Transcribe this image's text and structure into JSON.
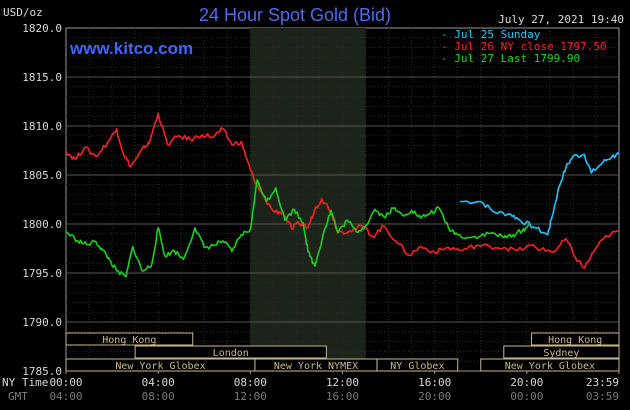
{
  "chart_data": {
    "type": "line",
    "title": "24 Hour Spot Gold (Bid)",
    "brand": "www.kitco.com",
    "timestamp": "July 27, 2021 19:40",
    "ylabel": "USD/oz",
    "ylim": [
      1785,
      1820
    ],
    "y_ticks": [
      "1820.0",
      "1815.0",
      "1810.0",
      "1805.0",
      "1800.0",
      "1795.0",
      "1790.0",
      "1785.0"
    ],
    "x_range_hours": [
      0,
      24
    ],
    "grid": true,
    "legend_position": "top-right",
    "x_axis_label_ny": "NY Time",
    "x_axis_label_gmt": "GMT",
    "x_ticks_ny": [
      "00:00",
      "04:00",
      "08:00",
      "12:00",
      "16:00",
      "20:00",
      "23:59"
    ],
    "x_ticks_gmt": [
      "04:00",
      "08:00",
      "12:00",
      "16:00",
      "20:00",
      "00:00",
      "03:59"
    ],
    "shaded_period_hours": [
      8,
      13
    ],
    "series": [
      {
        "name": "Jul 25 Sunday",
        "color": "#19c8ff",
        "x": [
          17.1,
          18.0,
          18.6,
          19.3,
          19.7,
          20.3,
          20.9,
          21.1,
          21.4,
          21.7,
          22.0,
          22.5,
          22.8,
          23.3,
          23.7,
          23.99
        ],
        "y": [
          1802.3,
          1802.3,
          1801.2,
          1801.0,
          1800.4,
          1799.7,
          1798.9,
          1800.8,
          1803.8,
          1805.8,
          1806.9,
          1807.1,
          1805.2,
          1806.3,
          1806.9,
          1807.1
        ]
      },
      {
        "name": "Jul 26 NY close 1797.50",
        "color": "#ff2020",
        "x": [
          0,
          0.4,
          0.8,
          1.3,
          1.8,
          2.2,
          2.5,
          2.8,
          3.1,
          3.4,
          3.6,
          4.0,
          4.4,
          4.9,
          5.4,
          5.9,
          6.4,
          6.8,
          7.2,
          7.6,
          7.9,
          8.2,
          8.6,
          9.0,
          9.4,
          9.8,
          10.1,
          10.5,
          10.8,
          11.1,
          11.5,
          11.8,
          12.3,
          12.9,
          13.3,
          13.8,
          14.3,
          14.9,
          15.4,
          16.0,
          16.6,
          17.2,
          17.8,
          18.4,
          19.0,
          19.6,
          20.2,
          20.6,
          21.2,
          21.7,
          22.1,
          22.5,
          23.0,
          23.5,
          23.99
        ],
        "y": [
          1807.4,
          1806.6,
          1807.8,
          1806.9,
          1808.3,
          1809.7,
          1807.1,
          1805.9,
          1806.8,
          1807.9,
          1808.2,
          1811.3,
          1808.1,
          1809.0,
          1808.6,
          1809.1,
          1808.9,
          1809.7,
          1808.1,
          1808.4,
          1806.3,
          1804.2,
          1802.7,
          1801.3,
          1801.2,
          1799.5,
          1800.1,
          1799.6,
          1801.5,
          1802.6,
          1801.3,
          1799.2,
          1799.3,
          1799.8,
          1798.7,
          1799.8,
          1798.3,
          1796.8,
          1797.7,
          1797.1,
          1797.6,
          1797.3,
          1797.8,
          1797.7,
          1797.6,
          1797.3,
          1797.8,
          1797.4,
          1797.2,
          1798.5,
          1796.6,
          1795.5,
          1797.6,
          1798.8,
          1799.3
        ]
      },
      {
        "name": "Jul 27 Last 1799.90",
        "color": "#19d219",
        "x": [
          0,
          0.5,
          0.9,
          1.3,
          1.6,
          1.9,
          2.2,
          2.6,
          2.9,
          3.3,
          3.7,
          4.0,
          4.3,
          4.7,
          5.1,
          5.6,
          6.0,
          6.4,
          6.8,
          7.2,
          7.6,
          8.0,
          8.3,
          8.7,
          9.1,
          9.5,
          9.9,
          10.3,
          10.5,
          10.8,
          11.2,
          11.5,
          11.8,
          12.2,
          12.6,
          13.0,
          13.4,
          13.8,
          14.2,
          14.6,
          15.0,
          15.4,
          15.8,
          16.2,
          16.6,
          17.0,
          17.5,
          18.0,
          18.5,
          19.0,
          19.4,
          19.8,
          20.1
        ],
        "y": [
          1799.2,
          1798.3,
          1797.9,
          1798.2,
          1797.3,
          1796.3,
          1795.2,
          1794.6,
          1797.7,
          1795.2,
          1795.7,
          1799.6,
          1796.7,
          1797.3,
          1796.4,
          1799.6,
          1797.6,
          1797.8,
          1798.3,
          1797.2,
          1798.9,
          1799.4,
          1804.5,
          1802.3,
          1803.7,
          1800.4,
          1801.5,
          1800.1,
          1797.2,
          1795.7,
          1799.3,
          1801.4,
          1799.1,
          1800.4,
          1799.2,
          1799.8,
          1801.5,
          1800.7,
          1801.6,
          1800.9,
          1801.4,
          1800.6,
          1801.1,
          1801.6,
          1799.6,
          1798.9,
          1798.6,
          1798.8,
          1799.1,
          1798.6,
          1798.9,
          1799.3,
          1799.9
        ]
      }
    ],
    "markets": [
      {
        "name": "Hong Kong",
        "start": 0,
        "end": 5.5,
        "row": 0
      },
      {
        "name": "London",
        "start": 3,
        "end": 11.3,
        "row": 1
      },
      {
        "name": "New York Globex",
        "start": 0,
        "end": 8.2,
        "row": 2
      },
      {
        "name": "New York NYMEX",
        "start": 8.2,
        "end": 13.5,
        "row": 2
      },
      {
        "name": "NY Globex",
        "start": 13.5,
        "end": 17,
        "row": 2
      },
      {
        "name": "Hong Kong",
        "start": 20.2,
        "end": 24,
        "row": 0
      },
      {
        "name": "Sydney",
        "start": 19,
        "end": 24,
        "row": 1
      },
      {
        "name": "New York Globex",
        "start": 18,
        "end": 24,
        "row": 2
      }
    ]
  }
}
